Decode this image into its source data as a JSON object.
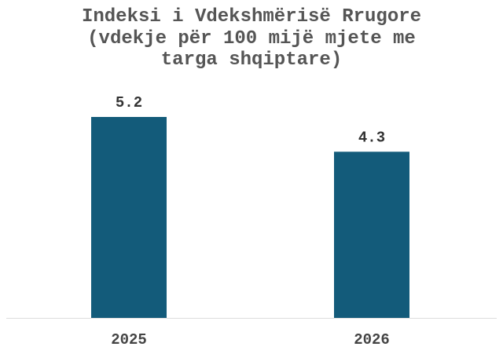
{
  "chart_data": {
    "type": "bar",
    "title": "Indeksi i Vdekshmërisë Rrugore (vdekje për 100 mijë mjete me targa shqiptare)",
    "categories": [
      "2025",
      "2026"
    ],
    "values": [
      5.2,
      4.3
    ],
    "color": "#135b7a"
  }
}
